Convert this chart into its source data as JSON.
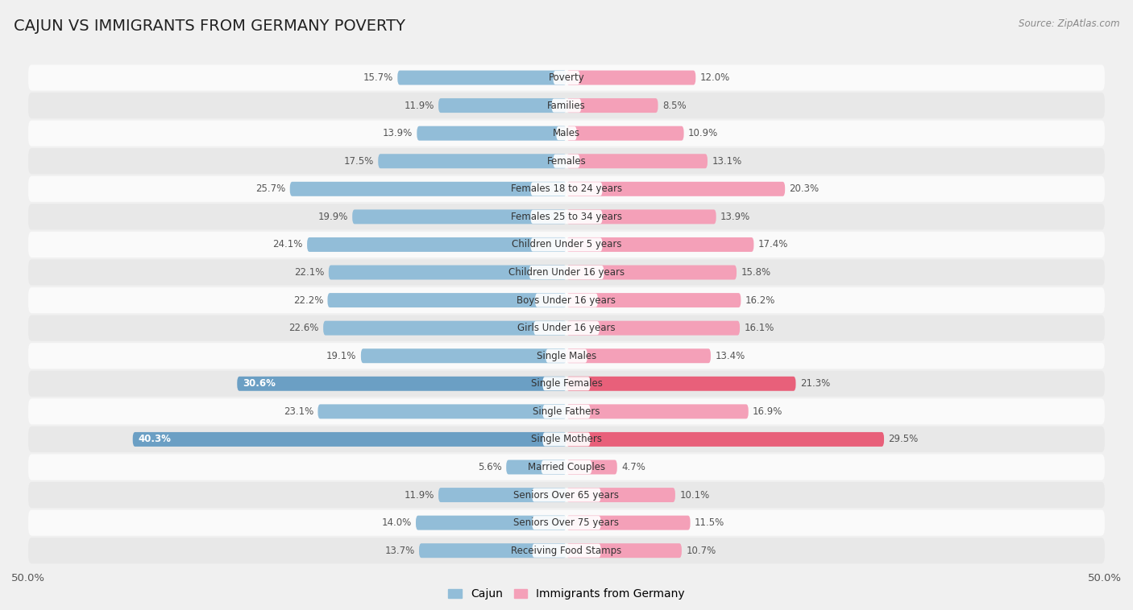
{
  "title": "CAJUN VS IMMIGRANTS FROM GERMANY POVERTY",
  "source": "Source: ZipAtlas.com",
  "categories": [
    "Poverty",
    "Families",
    "Males",
    "Females",
    "Females 18 to 24 years",
    "Females 25 to 34 years",
    "Children Under 5 years",
    "Children Under 16 years",
    "Boys Under 16 years",
    "Girls Under 16 years",
    "Single Males",
    "Single Females",
    "Single Fathers",
    "Single Mothers",
    "Married Couples",
    "Seniors Over 65 years",
    "Seniors Over 75 years",
    "Receiving Food Stamps"
  ],
  "cajun_values": [
    15.7,
    11.9,
    13.9,
    17.5,
    25.7,
    19.9,
    24.1,
    22.1,
    22.2,
    22.6,
    19.1,
    30.6,
    23.1,
    40.3,
    5.6,
    11.9,
    14.0,
    13.7
  ],
  "germany_values": [
    12.0,
    8.5,
    10.9,
    13.1,
    20.3,
    13.9,
    17.4,
    15.8,
    16.2,
    16.1,
    13.4,
    21.3,
    16.9,
    29.5,
    4.7,
    10.1,
    11.5,
    10.7
  ],
  "cajun_color": "#92bdd8",
  "germany_color": "#f4a0b8",
  "cajun_highlight_color": "#6b9fc4",
  "germany_highlight_color": "#e8607a",
  "highlight_rows": [
    11,
    13
  ],
  "axis_max": 50.0,
  "background_color": "#f0f0f0",
  "row_bg_light": "#fafafa",
  "row_bg_dark": "#e8e8e8",
  "legend_cajun": "Cajun",
  "legend_germany": "Immigrants from Germany",
  "title_fontsize": 14,
  "label_fontsize": 8.5,
  "value_fontsize": 8.5
}
